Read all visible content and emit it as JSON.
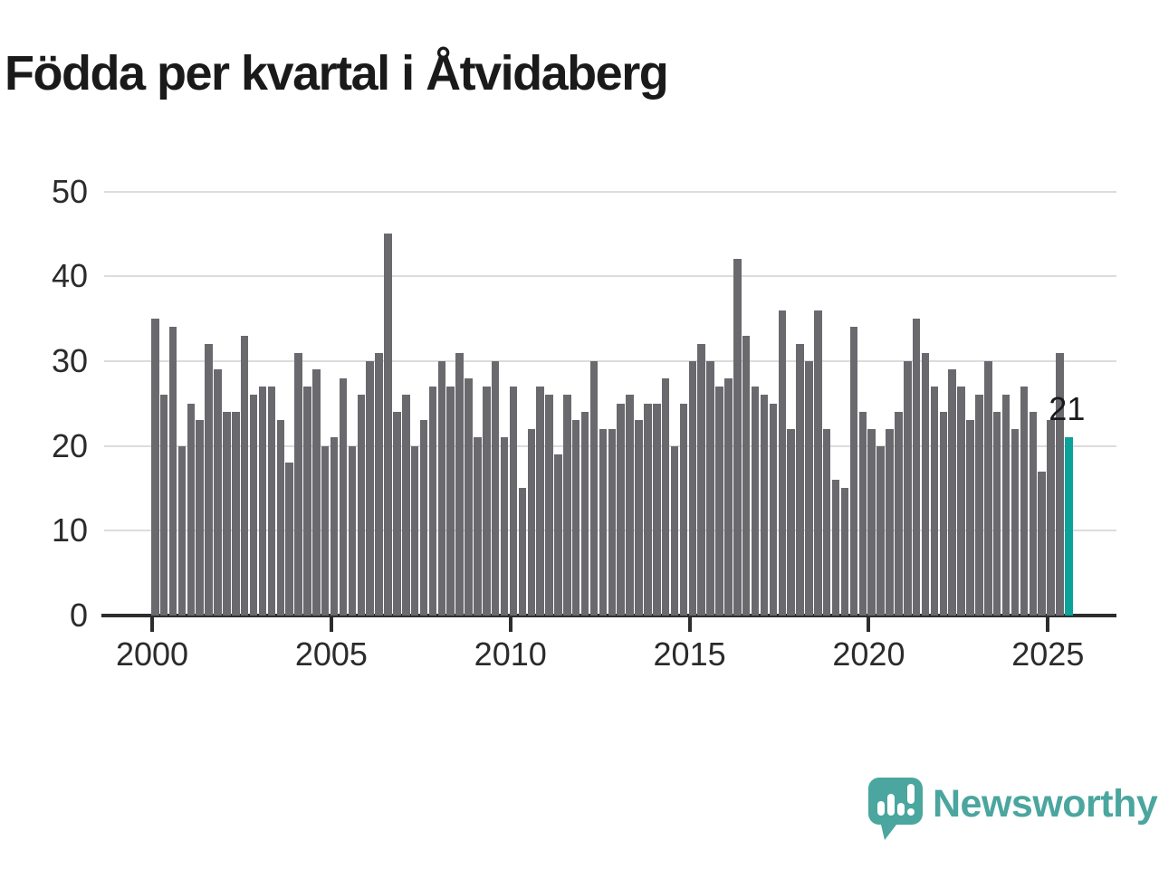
{
  "title": "Födda per kvartal i Åtvidaberg",
  "chart_data": {
    "type": "bar",
    "title": "Födda per kvartal i Åtvidaberg",
    "x_start": "2000-Q1",
    "x_end": "2025-Q3",
    "x_unit": "quarter",
    "values": [
      35,
      26,
      34,
      20,
      25,
      23,
      32,
      29,
      24,
      24,
      33,
      26,
      27,
      27,
      23,
      18,
      31,
      27,
      29,
      20,
      21,
      28,
      20,
      26,
      30,
      31,
      45,
      24,
      26,
      20,
      23,
      27,
      30,
      27,
      31,
      28,
      21,
      27,
      30,
      21,
      27,
      15,
      22,
      27,
      26,
      19,
      26,
      23,
      24,
      30,
      22,
      22,
      25,
      26,
      23,
      25,
      25,
      28,
      20,
      25,
      30,
      32,
      30,
      27,
      28,
      42,
      33,
      27,
      26,
      25,
      36,
      22,
      32,
      30,
      36,
      22,
      16,
      15,
      34,
      24,
      22,
      20,
      22,
      24,
      30,
      35,
      31,
      27,
      24,
      29,
      27,
      23,
      26,
      30,
      24,
      26,
      22,
      27,
      24,
      17,
      23,
      31,
      21
    ],
    "highlight_index": 102,
    "highlight_label": "21",
    "yticks": [
      0,
      10,
      20,
      30,
      40,
      50
    ],
    "ylim": [
      0,
      50
    ],
    "xtick_labels": [
      "2000",
      "2005",
      "2010",
      "2015",
      "2020",
      "2025"
    ],
    "xtick_bar_indices": [
      0,
      20,
      40,
      60,
      80,
      100
    ],
    "grid": true,
    "legend": false,
    "bar_color": "#6a6a6e",
    "highlight_color": "#0ba29a",
    "gridline_color": "#dcdcdc",
    "axis_color": "#2d2d2d",
    "label_color": "#2b2b2b"
  },
  "branding": {
    "logo_text": "Newsworthy",
    "logo_color": "#4aa69e"
  }
}
